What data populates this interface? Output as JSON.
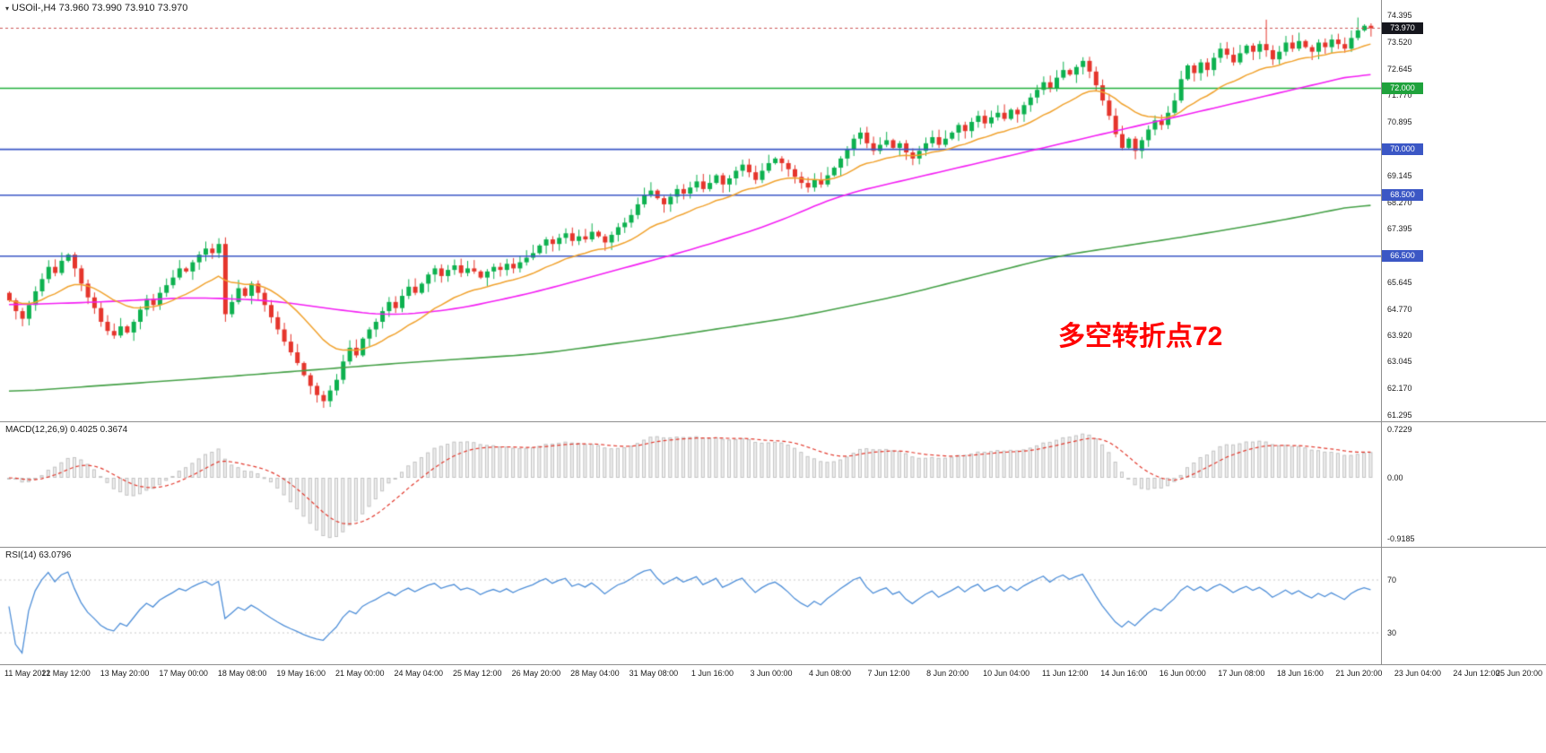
{
  "ui": {
    "title_marker": "▾",
    "chart_title": "USOil-,H4  73.960 73.990 73.910 73.970",
    "macd_label": "MACD(12,26,9) 0.4025 0.3674",
    "rsi_label": "RSI(14) 63.0796",
    "annotation": "多空转折点72",
    "colors": {
      "bull": "#0db14f",
      "bear": "#e5352c",
      "wick_bull": "#0db14f",
      "wick_bear": "#e5352c",
      "ma_fast": "#f0a22e",
      "ma_mid": "#f31ff3",
      "ma_slow": "#45a047",
      "level_green": "#1fae3a",
      "level_blue": "#3b57c5",
      "badge_black": "#15161d",
      "badge_green": "#1fa23c",
      "badge_blue": "#3b57c5",
      "last_price_line": "#cc5555",
      "macd_bar_fill": "#efefef",
      "macd_bar_stroke": "#c4c4c4",
      "macd_signal": "#e23a2e",
      "rsi_line": "#4f8fd8",
      "rsi_level": "#c8c8c8",
      "axis_text": "#1a1a1a",
      "border": "#8e8e8e"
    }
  },
  "chart_data": [
    {
      "type": "candlestick",
      "title": "USOil-,H4",
      "timeframe": "H4",
      "ohlc_display": {
        "open": "73.960",
        "high": "73.990",
        "low": "73.910",
        "close": "73.970"
      },
      "y_range": [
        61.295,
        74.395
      ],
      "y_ticks": [
        "74.395",
        "73.520",
        "72.645",
        "71.770",
        "70.895",
        "69.145",
        "68.270",
        "67.395",
        "65.645",
        "64.770",
        "63.920",
        "63.045",
        "62.170",
        "61.295"
      ],
      "price_badges": [
        {
          "label": "73.970",
          "value": 73.97,
          "bg": "badge_black"
        },
        {
          "label": "72.000",
          "value": 72.0,
          "bg": "badge_green"
        },
        {
          "label": "70.000",
          "value": 70.0,
          "bg": "badge_blue"
        },
        {
          "label": "68.500",
          "value": 68.5,
          "bg": "badge_blue"
        },
        {
          "label": "66.500",
          "value": 66.5,
          "bg": "badge_blue"
        }
      ],
      "hlines": [
        {
          "value": 72.0,
          "color": "level_green",
          "width": 1.6
        },
        {
          "value": 70.0,
          "color": "level_blue",
          "width": 1.6
        },
        {
          "value": 68.5,
          "color": "level_blue",
          "width": 1.6
        },
        {
          "value": 66.5,
          "color": "level_blue",
          "width": 1.6
        }
      ],
      "last_price": 73.97,
      "first_open": 65.3,
      "closes": [
        65.05,
        64.7,
        64.45,
        64.9,
        65.35,
        65.75,
        66.15,
        65.95,
        66.35,
        66.55,
        66.1,
        65.6,
        65.15,
        64.8,
        64.35,
        64.05,
        63.9,
        64.2,
        64.0,
        64.35,
        64.75,
        65.1,
        64.9,
        65.3,
        65.55,
        65.8,
        66.1,
        66.0,
        66.3,
        66.55,
        66.75,
        66.6,
        66.9,
        64.6,
        65.0,
        65.45,
        65.2,
        65.6,
        65.3,
        64.9,
        64.5,
        64.1,
        63.7,
        63.35,
        63.0,
        62.6,
        62.25,
        61.95,
        61.75,
        62.1,
        62.45,
        63.05,
        63.5,
        63.25,
        63.8,
        64.1,
        64.35,
        64.7,
        65.0,
        64.8,
        65.2,
        65.5,
        65.3,
        65.6,
        65.9,
        66.1,
        65.85,
        66.05,
        66.2,
        65.95,
        66.1,
        66.0,
        65.8,
        66.0,
        66.15,
        66.05,
        66.25,
        66.1,
        66.3,
        66.45,
        66.6,
        66.85,
        67.05,
        66.9,
        67.1,
        67.25,
        67.0,
        67.15,
        67.05,
        67.3,
        67.15,
        66.95,
        67.2,
        67.45,
        67.6,
        67.85,
        68.2,
        68.5,
        68.65,
        68.4,
        68.2,
        68.45,
        68.7,
        68.55,
        68.75,
        68.95,
        68.7,
        68.9,
        69.15,
        68.85,
        69.05,
        69.3,
        69.5,
        69.25,
        69.0,
        69.3,
        69.55,
        69.7,
        69.55,
        69.35,
        69.1,
        68.9,
        68.75,
        69.0,
        68.85,
        69.15,
        69.4,
        69.7,
        70.0,
        70.35,
        70.55,
        70.2,
        69.95,
        70.15,
        70.3,
        70.05,
        70.2,
        69.9,
        69.7,
        69.95,
        70.2,
        70.4,
        70.15,
        70.35,
        70.55,
        70.8,
        70.6,
        70.9,
        71.1,
        70.85,
        71.05,
        71.2,
        71.0,
        71.3,
        71.15,
        71.45,
        71.7,
        71.95,
        72.2,
        72.0,
        72.35,
        72.6,
        72.45,
        72.7,
        72.9,
        72.55,
        72.1,
        71.6,
        71.1,
        70.5,
        70.05,
        70.35,
        69.95,
        70.3,
        70.65,
        70.95,
        70.8,
        71.2,
        71.6,
        72.3,
        72.75,
        72.5,
        72.85,
        72.6,
        73.0,
        73.3,
        73.1,
        72.85,
        73.15,
        73.4,
        73.2,
        73.45,
        73.25,
        72.95,
        73.2,
        73.5,
        73.3,
        73.55,
        73.35,
        73.2,
        73.5,
        73.35,
        73.6,
        73.45,
        73.3,
        73.65,
        73.9,
        74.05,
        73.97
      ],
      "spikes": [
        {
          "i": 30,
          "high": 66.98
        },
        {
          "i": 33,
          "low": 64.35
        },
        {
          "i": 48,
          "low": 61.62
        },
        {
          "i": 49,
          "low": 61.66
        },
        {
          "i": 164,
          "high": 73.02
        },
        {
          "i": 172,
          "low": 69.82
        },
        {
          "i": 192,
          "high": 74.25
        },
        {
          "i": 206,
          "high": 74.32
        }
      ],
      "moving_averages": {
        "fast": {
          "name": "MA fast (orange)",
          "method": "ema",
          "period": 18
        },
        "mid": {
          "name": "MA mid (magenta)",
          "anchors": [
            [
              0,
              64.9
            ],
            [
              14,
              65.0
            ],
            [
              28,
              65.15
            ],
            [
              40,
              65.05
            ],
            [
              50,
              64.75
            ],
            [
              58,
              64.55
            ],
            [
              68,
              64.75
            ],
            [
              80,
              65.3
            ],
            [
              92,
              66.0
            ],
            [
              104,
              66.7
            ],
            [
              116,
              67.5
            ],
            [
              127,
              68.5
            ],
            [
              140,
              69.15
            ],
            [
              152,
              69.75
            ],
            [
              164,
              70.35
            ],
            [
              176,
              70.95
            ],
            [
              188,
              71.55
            ],
            [
              198,
              72.05
            ],
            [
              208,
              72.55
            ]
          ]
        },
        "slow": {
          "name": "MA slow (green)",
          "anchors": [
            [
              0,
              62.05
            ],
            [
              30,
              62.5
            ],
            [
              60,
              63.0
            ],
            [
              81,
              63.3
            ],
            [
              100,
              63.85
            ],
            [
              120,
              64.5
            ],
            [
              136,
              65.2
            ],
            [
              160,
              66.5
            ],
            [
              180,
              67.15
            ],
            [
              195,
              67.7
            ],
            [
              208,
              68.25
            ]
          ]
        }
      },
      "x_labels": [
        "11 May 2021",
        "12 May 12:00",
        "13 May 20:00",
        "17 May 00:00",
        "18 May 08:00",
        "19 May 16:00",
        "21 May 00:00",
        "24 May 04:00",
        "25 May 12:00",
        "26 May 20:00",
        "28 May 04:00",
        "31 May 08:00",
        "1 Jun 16:00",
        "3 Jun 00:00",
        "4 Jun 08:00",
        "7 Jun 12:00",
        "8 Jun 20:00",
        "10 Jun 04:00",
        "11 Jun 12:00",
        "14 Jun 16:00",
        "16 Jun 00:00",
        "17 Jun 08:00",
        "18 Jun 16:00",
        "21 Jun 20:00",
        "23 Jun 04:00",
        "24 Jun 12:00",
        "25 Jun 20:00"
      ]
    },
    {
      "type": "bar",
      "name": "MACD",
      "params": [
        12,
        26,
        9
      ],
      "current_values": [
        0.4025,
        0.3674
      ],
      "y_ticks": [
        "0.7229",
        "0.00",
        "-0.9185"
      ],
      "derived_from": "closes of chart_data[0], EMA12-EMA26 histogram with EMA9 signal line"
    },
    {
      "type": "line",
      "name": "RSI",
      "period": 14,
      "current_value": 63.0796,
      "levels": [
        70,
        30
      ],
      "level_labels": [
        "70",
        "30"
      ],
      "derived_from": "closes of chart_data[0], Wilder RSI(14)"
    }
  ]
}
